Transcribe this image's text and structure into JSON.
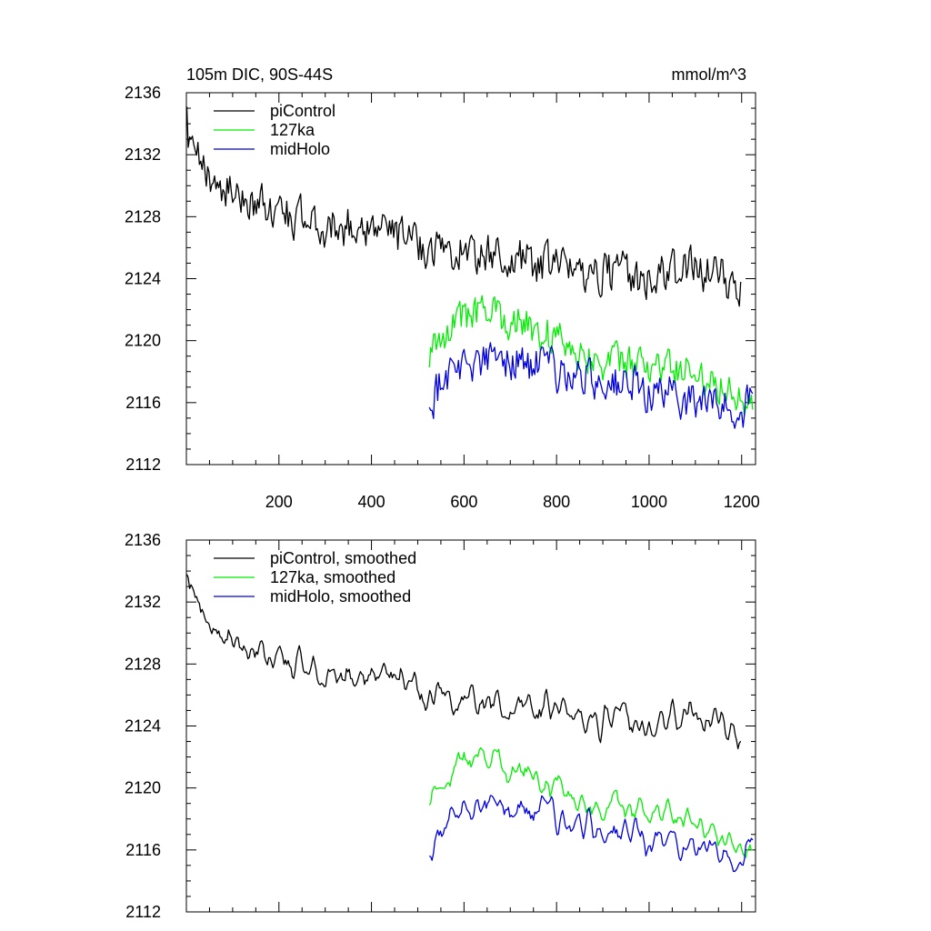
{
  "chart_data": [
    {
      "type": "line",
      "title": "105m DIC, 90S-44S",
      "units_label": "mmol/m^3",
      "xlim": [
        0,
        1230
      ],
      "ylim": [
        2112,
        2136
      ],
      "x_ticks": [
        200,
        400,
        600,
        800,
        1000,
        1200
      ],
      "x_tick_labels": [
        "200",
        "400",
        "600",
        "800",
        "1000",
        "1200"
      ],
      "y_ticks": [
        2112,
        2116,
        2120,
        2124,
        2128,
        2132,
        2136
      ],
      "y_tick_labels": [
        "2112",
        "2116",
        "2120",
        "2124",
        "2128",
        "2132",
        "2136"
      ],
      "legend": "top-left",
      "series": [
        {
          "name": "piControl",
          "color": "#000000",
          "key": "piControl",
          "x_start": 1,
          "x_end": 1200,
          "trend": [
            [
              1,
              2134.2
            ],
            [
              5,
              2132.3
            ],
            [
              30,
              2131.3
            ],
            [
              100,
              2129.4
            ],
            [
              200,
              2128.4
            ],
            [
              300,
              2127.2
            ],
            [
              400,
              2127.5
            ],
            [
              500,
              2126.2
            ],
            [
              600,
              2125.8
            ],
            [
              700,
              2125.3
            ],
            [
              800,
              2124.7
            ],
            [
              900,
              2124.5
            ],
            [
              1000,
              2124.0
            ],
            [
              1100,
              2124.7
            ],
            [
              1200,
              2123.6
            ]
          ],
          "noise": 1.2
        },
        {
          "name": "127ka",
          "color": "#00ee00",
          "key": "c127ka",
          "x_start": 525,
          "x_end": 1225,
          "trend": [
            [
              525,
              2119.0
            ],
            [
              545,
              2120.3
            ],
            [
              600,
              2121.6
            ],
            [
              650,
              2121.8
            ],
            [
              700,
              2121.4
            ],
            [
              800,
              2120.2
            ],
            [
              900,
              2118.6
            ],
            [
              1000,
              2118.3
            ],
            [
              1100,
              2118.0
            ],
            [
              1150,
              2117.3
            ],
            [
              1200,
              2116.8
            ],
            [
              1225,
              2115.0
            ]
          ],
          "noise": 1.1
        },
        {
          "name": "midHolo",
          "color": "#0000dd",
          "key": "midHolo",
          "x_start": 525,
          "x_end": 1225,
          "trend": [
            [
              525,
              2115.8
            ],
            [
              540,
              2116.8
            ],
            [
              560,
              2118.0
            ],
            [
              600,
              2118.5
            ],
            [
              700,
              2118.8
            ],
            [
              800,
              2118.0
            ],
            [
              900,
              2117.4
            ],
            [
              1000,
              2116.7
            ],
            [
              1100,
              2116.2
            ],
            [
              1150,
              2115.8
            ],
            [
              1200,
              2115.4
            ],
            [
              1225,
              2116.3
            ]
          ],
          "noise": 1.2
        }
      ]
    },
    {
      "type": "line",
      "title": "",
      "xlim": [
        0,
        1230
      ],
      "ylim": [
        2112,
        2136
      ],
      "x_ticks": [
        200,
        400,
        600,
        800,
        1000,
        1200
      ],
      "y_ticks": [
        2112,
        2116,
        2120,
        2124,
        2128,
        2132,
        2136
      ],
      "y_tick_labels": [
        "2112",
        "2116",
        "2120",
        "2124",
        "2128",
        "2132",
        "2136"
      ],
      "legend": "top-left",
      "series": [
        {
          "name": "piControl, smoothed",
          "color": "#000000",
          "key": "piControl",
          "noise": 0.55
        },
        {
          "name": "127ka, smoothed",
          "color": "#00ee00",
          "key": "c127ka",
          "noise": 0.55
        },
        {
          "name": "midHolo, smoothed",
          "color": "#0000dd",
          "key": "midHolo",
          "noise": 0.6
        }
      ]
    }
  ]
}
